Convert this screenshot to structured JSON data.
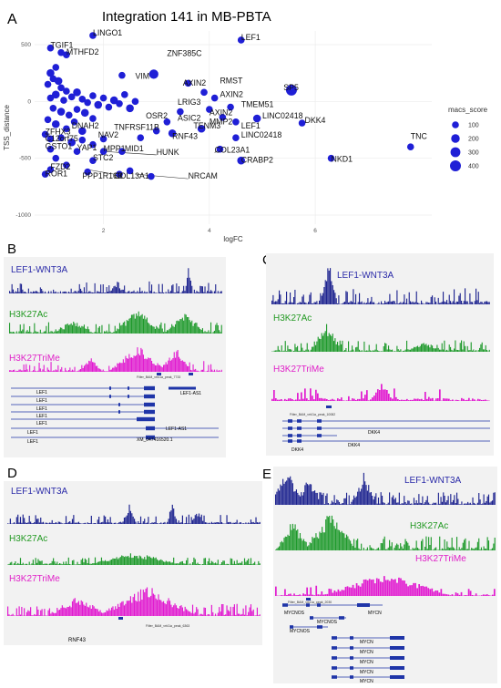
{
  "figure": {
    "panels": {
      "A": "A",
      "B": "B",
      "C": "C",
      "D": "D",
      "E": "E"
    }
  },
  "chart_data": {
    "type": "scatter",
    "title": "Integration 141 in MB-PBTA",
    "xlabel": "logFC",
    "ylabel": "TSS_distance",
    "xlim": [
      0.7,
      8.2
    ],
    "ylim": [
      -1080,
      620
    ],
    "xticks": [
      2,
      4,
      6
    ],
    "yticks": [
      500,
      0,
      -500,
      -1000
    ],
    "grid": true,
    "legend": {
      "title": "macs_score",
      "sizes": [
        100,
        200,
        300,
        400
      ],
      "placement": "right"
    },
    "colors": {
      "points": "#1f1fd6"
    },
    "labels": [
      {
        "text": "LINGO1",
        "x": 1.8,
        "y": 580
      },
      {
        "text": "TGIF1",
        "x": 1.0,
        "y": 470
      },
      {
        "text": "MTHFD2",
        "x": 1.3,
        "y": 410
      },
      {
        "text": "ZNF385C",
        "x": 3.2,
        "y": 400
      },
      {
        "text": "LEF1",
        "x": 4.6,
        "y": 540
      },
      {
        "text": "VIM",
        "x": 2.6,
        "y": 200
      },
      {
        "text": "AXIN2",
        "x": 3.5,
        "y": 140
      },
      {
        "text": "RMST",
        "x": 4.2,
        "y": 160
      },
      {
        "text": "SP5",
        "x": 5.4,
        "y": 100
      },
      {
        "text": "LRIG3",
        "x": 3.4,
        "y": -30
      },
      {
        "text": "AXIN2",
        "x": 4.2,
        "y": 40
      },
      {
        "text": "TMEM51",
        "x": 4.6,
        "y": -50
      },
      {
        "text": "OSR2",
        "x": 2.8,
        "y": -150
      },
      {
        "text": "ASIC2",
        "x": 3.4,
        "y": -170
      },
      {
        "text": "AXIN2",
        "x": 4.0,
        "y": -120
      },
      {
        "text": "MMP2",
        "x": 4.0,
        "y": -200
      },
      {
        "text": "LINC02418",
        "x": 5.0,
        "y": -150
      },
      {
        "text": "DKK4",
        "x": 5.8,
        "y": -190
      },
      {
        "text": "DNAH2",
        "x": 1.4,
        "y": -240
      },
      {
        "text": "TNFRSF11B",
        "x": 2.2,
        "y": -250
      },
      {
        "text": "TENM3",
        "x": 3.7,
        "y": -240
      },
      {
        "text": "LEF1",
        "x": 4.6,
        "y": -240
      },
      {
        "text": "ZFHX3",
        "x": 0.9,
        "y": -290
      },
      {
        "text": "NAV2",
        "x": 1.9,
        "y": -320
      },
      {
        "text": "RNF43",
        "x": 3.3,
        "y": -330
      },
      {
        "text": "LINC02418",
        "x": 4.6,
        "y": -320
      },
      {
        "text": "C12orf75",
        "x": 0.9,
        "y": -350
      },
      {
        "text": "TNC",
        "x": 7.8,
        "y": -330
      },
      {
        "text": "GSTO1",
        "x": 0.9,
        "y": -420
      },
      {
        "text": "YAP1",
        "x": 1.5,
        "y": -430
      },
      {
        "text": "MPP1",
        "x": 2.0,
        "y": -440
      },
      {
        "text": "MID1",
        "x": 2.4,
        "y": -440
      },
      {
        "text": "COL23A1",
        "x": 4.1,
        "y": -450
      },
      {
        "text": "STC2",
        "x": 1.8,
        "y": -520
      },
      {
        "text": "HUNK",
        "x": 3.0,
        "y": -470
      },
      {
        "text": "CRABP2",
        "x": 4.6,
        "y": -540
      },
      {
        "text": "NKD1",
        "x": 6.3,
        "y": -530
      },
      {
        "text": "FZD2",
        "x": 1.0,
        "y": -600
      },
      {
        "text": "ROR1",
        "x": 0.9,
        "y": -660
      },
      {
        "text": "PPP1R16B",
        "x": 1.6,
        "y": -680
      },
      {
        "text": "COL13A1",
        "x": 2.2,
        "y": -680
      },
      {
        "text": "NRCAM",
        "x": 3.6,
        "y": -680
      }
    ],
    "points": [
      {
        "x": 1.8,
        "y": 580,
        "s": 100
      },
      {
        "x": 1.0,
        "y": 470,
        "s": 100
      },
      {
        "x": 1.3,
        "y": 410,
        "s": 100
      },
      {
        "x": 1.2,
        "y": 430,
        "s": 100
      },
      {
        "x": 2.95,
        "y": 240,
        "s": 250
      },
      {
        "x": 4.6,
        "y": 540,
        "s": 100
      },
      {
        "x": 2.35,
        "y": 230,
        "s": 100
      },
      {
        "x": 1.1,
        "y": 300,
        "s": 100
      },
      {
        "x": 1.0,
        "y": 250,
        "s": 150
      },
      {
        "x": 1.05,
        "y": 200,
        "s": 100
      },
      {
        "x": 0.95,
        "y": 150,
        "s": 100
      },
      {
        "x": 1.15,
        "y": 180,
        "s": 150
      },
      {
        "x": 1.2,
        "y": 120,
        "s": 100
      },
      {
        "x": 1.3,
        "y": 90,
        "s": 100
      },
      {
        "x": 1.1,
        "y": 60,
        "s": 150
      },
      {
        "x": 1.0,
        "y": 30,
        "s": 100
      },
      {
        "x": 1.25,
        "y": 10,
        "s": 100
      },
      {
        "x": 1.4,
        "y": 40,
        "s": 100
      },
      {
        "x": 1.5,
        "y": 80,
        "s": 150
      },
      {
        "x": 1.6,
        "y": 20,
        "s": 100
      },
      {
        "x": 1.7,
        "y": -10,
        "s": 100
      },
      {
        "x": 1.8,
        "y": 50,
        "s": 100
      },
      {
        "x": 1.9,
        "y": -30,
        "s": 150
      },
      {
        "x": 2.0,
        "y": 30,
        "s": 100
      },
      {
        "x": 2.1,
        "y": -50,
        "s": 100
      },
      {
        "x": 2.2,
        "y": 10,
        "s": 150
      },
      {
        "x": 2.3,
        "y": -20,
        "s": 100
      },
      {
        "x": 2.4,
        "y": 60,
        "s": 100
      },
      {
        "x": 2.5,
        "y": -60,
        "s": 150
      },
      {
        "x": 2.6,
        "y": 0,
        "s": 100
      },
      {
        "x": 1.05,
        "y": -60,
        "s": 100
      },
      {
        "x": 1.2,
        "y": -90,
        "s": 150
      },
      {
        "x": 1.35,
        "y": -120,
        "s": 100
      },
      {
        "x": 1.5,
        "y": -70,
        "s": 100
      },
      {
        "x": 1.65,
        "y": -100,
        "s": 150
      },
      {
        "x": 1.8,
        "y": -150,
        "s": 100
      },
      {
        "x": 0.95,
        "y": -160,
        "s": 100
      },
      {
        "x": 1.1,
        "y": -200,
        "s": 150
      },
      {
        "x": 1.3,
        "y": -240,
        "s": 100
      },
      {
        "x": 1.45,
        "y": -180,
        "s": 100
      },
      {
        "x": 1.6,
        "y": -260,
        "s": 150
      },
      {
        "x": 0.9,
        "y": -290,
        "s": 100
      },
      {
        "x": 1.0,
        "y": -330,
        "s": 100
      },
      {
        "x": 1.2,
        "y": -320,
        "s": 100
      },
      {
        "x": 1.4,
        "y": -360,
        "s": 150
      },
      {
        "x": 1.6,
        "y": -340,
        "s": 100
      },
      {
        "x": 1.8,
        "y": -380,
        "s": 100
      },
      {
        "x": 2.0,
        "y": -330,
        "s": 100
      },
      {
        "x": 2.7,
        "y": -320,
        "s": 100
      },
      {
        "x": 3.0,
        "y": -260,
        "s": 100
      },
      {
        "x": 3.3,
        "y": -280,
        "s": 150
      },
      {
        "x": 3.45,
        "y": -90,
        "s": 100
      },
      {
        "x": 3.6,
        "y": 160,
        "s": 100
      },
      {
        "x": 3.9,
        "y": 80,
        "s": 100
      },
      {
        "x": 4.0,
        "y": -70,
        "s": 100
      },
      {
        "x": 4.1,
        "y": 30,
        "s": 100
      },
      {
        "x": 4.25,
        "y": -140,
        "s": 100
      },
      {
        "x": 4.4,
        "y": -50,
        "s": 100
      },
      {
        "x": 4.5,
        "y": -180,
        "s": 100
      },
      {
        "x": 4.5,
        "y": -320,
        "s": 100
      },
      {
        "x": 4.2,
        "y": -420,
        "s": 100
      },
      {
        "x": 4.6,
        "y": -520,
        "s": 150
      },
      {
        "x": 3.85,
        "y": -240,
        "s": 150
      },
      {
        "x": 3.2,
        "y": -180,
        "s": 100
      },
      {
        "x": 5.55,
        "y": 100,
        "s": 400
      },
      {
        "x": 4.9,
        "y": -150,
        "s": 150
      },
      {
        "x": 5.75,
        "y": -190,
        "s": 100
      },
      {
        "x": 7.8,
        "y": -400,
        "s": 100
      },
      {
        "x": 6.3,
        "y": -500,
        "s": 100
      },
      {
        "x": 1.0,
        "y": -420,
        "s": 100
      },
      {
        "x": 1.5,
        "y": -440,
        "s": 100
      },
      {
        "x": 2.0,
        "y": -440,
        "s": 100
      },
      {
        "x": 2.35,
        "y": -440,
        "s": 100
      },
      {
        "x": 1.8,
        "y": -520,
        "s": 100
      },
      {
        "x": 1.0,
        "y": -600,
        "s": 100
      },
      {
        "x": 0.9,
        "y": -640,
        "s": 100
      },
      {
        "x": 1.7,
        "y": -620,
        "s": 100
      },
      {
        "x": 2.3,
        "y": -640,
        "s": 100
      },
      {
        "x": 2.5,
        "y": -610,
        "s": 100
      },
      {
        "x": 2.9,
        "y": -660,
        "s": 100
      },
      {
        "x": 1.1,
        "y": -500,
        "s": 100
      },
      {
        "x": 1.3,
        "y": -560,
        "s": 100
      }
    ]
  },
  "panel_b": {
    "tracks": [
      "LEF1-WNT3A",
      "H3K27Ac",
      "H3K27TriMe"
    ],
    "peak_label": "Filter_BAM_vrt41a_peak_7733",
    "genes": [
      "LEF1",
      "LEF1",
      "LEF1",
      "LEF1",
      "LEF1",
      "LEF1",
      "LEF1"
    ],
    "extra_genes": [
      "LEF1-AS1",
      "LEF1-AS1",
      "XM_047416520.1"
    ]
  },
  "panel_c": {
    "tracks": [
      "LEF1-WNT3A",
      "H3K27Ac",
      "H3K27TriMe"
    ],
    "peak_label": "Filter_BAM_vrt41a_peak_10082",
    "genes": [
      "DKK4",
      "DKK4",
      "DKK4"
    ]
  },
  "panel_d": {
    "tracks": [
      "LEF1-WNT3A",
      "H3K27Ac",
      "H3K27TriMe"
    ],
    "peak_label": "Filter_BAM_vrt41a_peak_6363",
    "genes": [
      "RNF43"
    ]
  },
  "panel_e": {
    "tracks": [
      "LEF1-WNT3A",
      "H3K27Ac",
      "H3K27TriMe"
    ],
    "peak_label": "Filter_BAM_vrt41a_peak_2030",
    "genes": [
      "MYCNOS",
      "MYCN",
      "MYCNOS",
      "MYCNOS",
      "MYCN",
      "MYCN",
      "MYCN",
      "MYCN",
      "MYCN"
    ]
  }
}
